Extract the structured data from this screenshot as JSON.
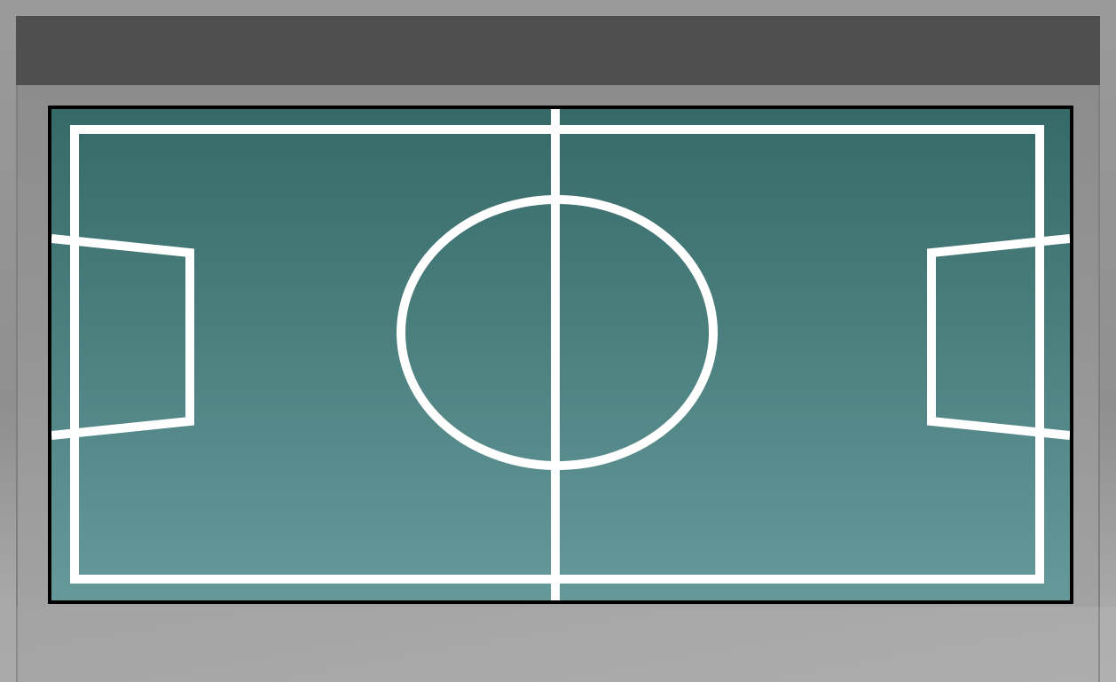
{
  "field": {
    "surface_top_color": "#356a68",
    "surface_bottom_color": "#66999a",
    "line_color": "#ffffff"
  },
  "chrome": {
    "top_bar_color": "#4f4f4f",
    "frame_color": "#8f8f8f"
  }
}
